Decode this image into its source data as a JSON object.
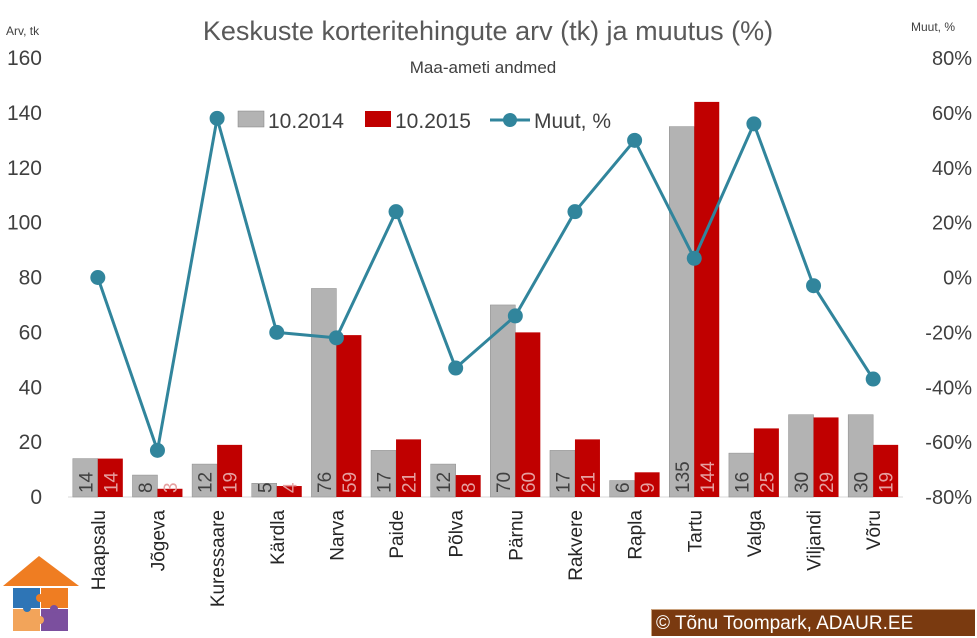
{
  "chart_data": {
    "type": "bar",
    "title": "Keskuste korteritehingute arv (tk) ja muutus (%)",
    "subtitle": "Maa-ameti andmed",
    "y_left_unit": "Arv, tk",
    "y_right_unit": "Muut, %",
    "ylim": [
      0,
      160
    ],
    "yticks": [
      "160",
      "140",
      "120",
      "100",
      "80",
      "60",
      "40",
      "20",
      "0"
    ],
    "y2lim": [
      -80,
      80
    ],
    "y2ticks": [
      "80%",
      "60%",
      "40%",
      "20%",
      "0%",
      "-20%",
      "-40%",
      "-60%",
      "-80%"
    ],
    "categories": [
      "Haapsalu",
      "Jõgeva",
      "Kuressaare",
      "Kärdla",
      "Narva",
      "Paide",
      "Põlva",
      "Pärnu",
      "Rakvere",
      "Rapla",
      "Tartu",
      "Valga",
      "Viljandi",
      "Võru"
    ],
    "series": [
      {
        "name": "10.2014",
        "kind": "bar",
        "color": "#b3b3b3",
        "values": [
          14,
          8,
          12,
          5,
          76,
          17,
          12,
          70,
          17,
          6,
          135,
          16,
          30,
          30
        ],
        "labels": [
          "14",
          "8",
          "12",
          "5",
          "76",
          "17",
          "12",
          "70",
          "17",
          "6",
          "135",
          "16",
          "30",
          "30"
        ]
      },
      {
        "name": "10.2015",
        "kind": "bar",
        "color": "#c00000",
        "values": [
          14,
          3,
          19,
          4,
          59,
          21,
          8,
          60,
          21,
          9,
          144,
          25,
          29,
          19
        ],
        "labels": [
          "14",
          "3",
          "19",
          "4",
          "59",
          "21",
          "8",
          "60",
          "21",
          "9",
          "144",
          "25",
          "29",
          "19"
        ]
      },
      {
        "name": "Muut, %",
        "kind": "line",
        "axis": "right",
        "color": "#31859c",
        "values": [
          0,
          -63,
          58,
          -20,
          -22,
          24,
          -33,
          -14,
          24,
          50,
          7,
          56,
          -3,
          -37
        ]
      }
    ],
    "legend_position": "top-center",
    "grid": false
  },
  "footer": {
    "copyright_symbol": "©",
    "copyright_text": "Tõnu Toompark, ADAUR.EE"
  }
}
